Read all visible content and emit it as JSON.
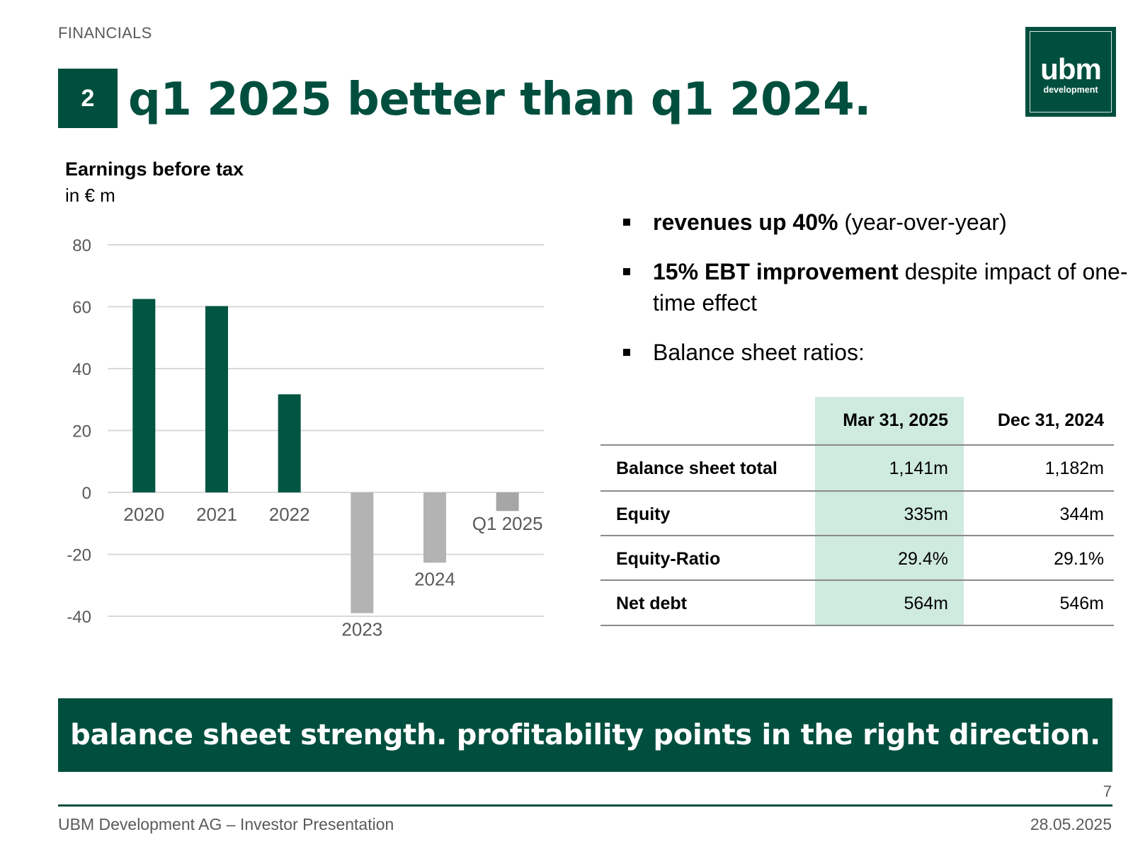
{
  "header": {
    "section": "FINANCIALS",
    "slide_number": "2",
    "title": "q1 2025 better than q1 2024."
  },
  "logo": {
    "word": "ubm",
    "sub": "development"
  },
  "chart_data": {
    "type": "bar",
    "title": "Earnings before tax",
    "ylabel": "in € m",
    "categories": [
      "2020",
      "2021",
      "2022",
      "2023",
      "2024",
      "Q1 2025"
    ],
    "values": [
      62.5,
      60.2,
      31.7,
      -39.0,
      -22.7,
      -6.0
    ],
    "ylim": [
      -40,
      80
    ],
    "yticks": [
      80,
      60,
      40,
      20,
      0,
      -20,
      -40
    ],
    "grid": true,
    "colors": {
      "positive": "#005543",
      "negative": "#b3b3b3",
      "current": "#a6a6a6"
    }
  },
  "bullets": [
    {
      "bold": "revenues up 40%",
      "rest": " (year-over-year)"
    },
    {
      "bold": "15% EBT improvement",
      "rest": " despite impact of one-time effect"
    },
    {
      "bold": "",
      "rest": "Balance sheet ratios:"
    }
  ],
  "ratios": {
    "headers": [
      "Mar 31, 2025",
      "Dec 31, 2024"
    ],
    "rows": [
      {
        "label": "Balance sheet total",
        "mar": "1,141m",
        "dec": "1,182m"
      },
      {
        "label": "Equity",
        "mar": "335m",
        "dec": "344m"
      },
      {
        "label": "Equity-Ratio",
        "mar": "29.4%",
        "dec": "29.1%"
      },
      {
        "label": "Net debt",
        "mar": "564m",
        "dec": "546m"
      }
    ]
  },
  "banner": "balance sheet strength. profitability points in the right direction.",
  "footer": {
    "page": "7",
    "company": "UBM Development AG – Investor Presentation",
    "date": "28.05.2025"
  },
  "colors": {
    "brand": "#004f3e",
    "highlight": "#cfeadf"
  }
}
